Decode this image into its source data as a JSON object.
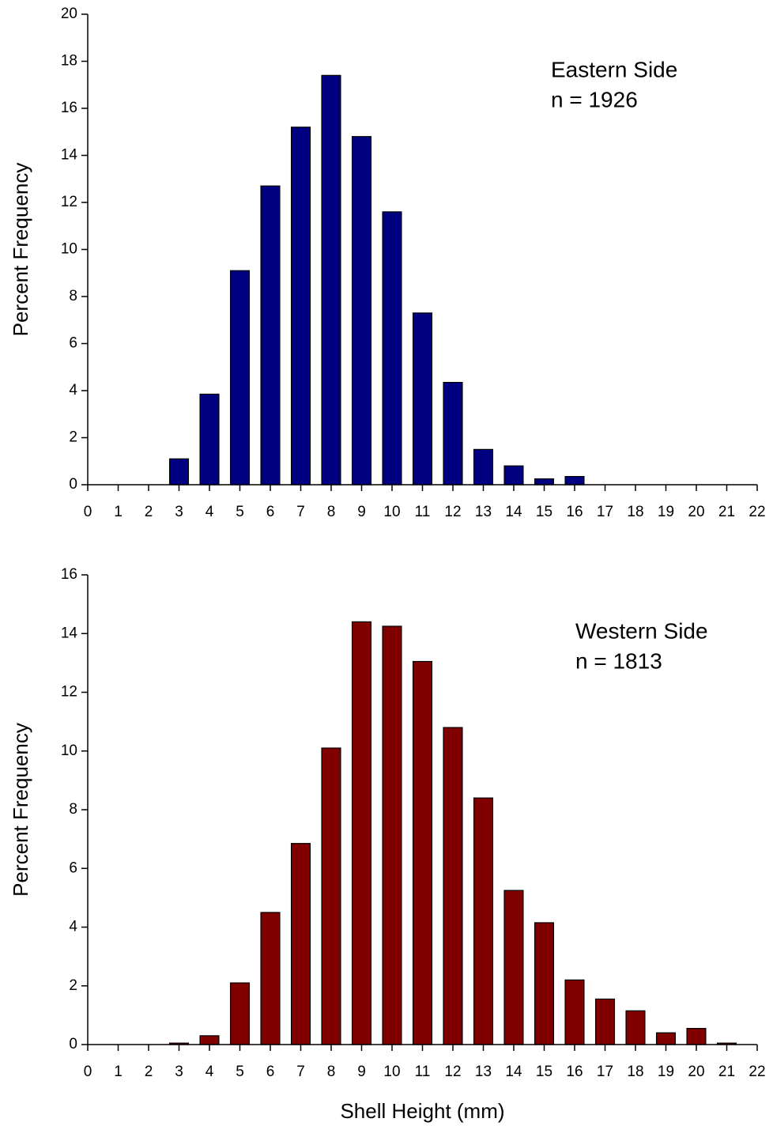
{
  "chart_data": [
    {
      "type": "bar",
      "ylabel": "Percent Frequency",
      "annotations": [
        "Eastern Side",
        "n = 1926"
      ],
      "color": "#000080",
      "x": [
        3,
        4,
        5,
        6,
        7,
        8,
        9,
        10,
        11,
        12,
        13,
        14,
        15,
        16
      ],
      "values": [
        1.1,
        3.85,
        9.1,
        12.7,
        15.2,
        17.4,
        14.8,
        11.6,
        7.3,
        4.35,
        1.5,
        0.8,
        0.25,
        0.35
      ],
      "xlim": [
        0,
        22
      ],
      "xticks": [
        0,
        1,
        2,
        3,
        4,
        5,
        6,
        7,
        8,
        9,
        10,
        11,
        12,
        13,
        14,
        15,
        16,
        17,
        18,
        19,
        20,
        21,
        22
      ],
      "ylim": [
        0,
        20
      ],
      "yticks": [
        0,
        2,
        4,
        6,
        8,
        10,
        12,
        14,
        16,
        18,
        20
      ]
    },
    {
      "type": "bar",
      "ylabel": "Percent Frequency",
      "xlabel": "Shell Height (mm)",
      "annotations": [
        "Western Side",
        "n = 1813"
      ],
      "color": "#800000",
      "x": [
        3,
        4,
        5,
        6,
        7,
        8,
        9,
        10,
        11,
        12,
        13,
        14,
        15,
        16,
        17,
        18,
        19,
        20,
        21
      ],
      "values": [
        0.05,
        0.3,
        2.1,
        4.5,
        6.85,
        10.1,
        14.4,
        14.25,
        13.05,
        10.8,
        8.4,
        5.25,
        4.15,
        2.2,
        1.55,
        1.15,
        0.4,
        0.55,
        0.05
      ],
      "xlim": [
        0,
        22
      ],
      "xticks": [
        0,
        1,
        2,
        3,
        4,
        5,
        6,
        7,
        8,
        9,
        10,
        11,
        12,
        13,
        14,
        15,
        16,
        17,
        18,
        19,
        20,
        21,
        22
      ],
      "ylim": [
        0,
        16
      ],
      "yticks": [
        0,
        2,
        4,
        6,
        8,
        10,
        12,
        14,
        16
      ]
    }
  ]
}
